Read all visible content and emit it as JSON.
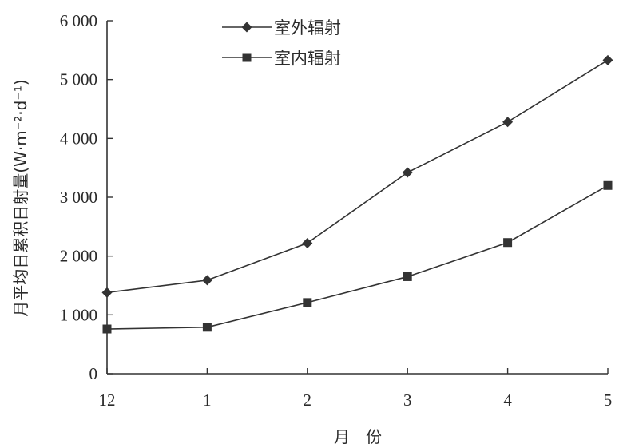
{
  "chart_data": {
    "type": "line",
    "categories": [
      "12",
      "1",
      "2",
      "3",
      "4",
      "5"
    ],
    "series": [
      {
        "name": "室外辐射",
        "marker": "diamond",
        "values": [
          1380,
          1590,
          2220,
          3420,
          4280,
          5330
        ]
      },
      {
        "name": "室内辐射",
        "marker": "square",
        "values": [
          760,
          790,
          1210,
          1650,
          2230,
          3200
        ]
      }
    ],
    "xlabel": "月　份",
    "ylabel": "月平均日累积日射量(W·m⁻²·d⁻¹)",
    "ylim": [
      0,
      6000
    ],
    "yticks": [
      0,
      1000,
      2000,
      3000,
      4000,
      5000,
      6000
    ],
    "ytick_labels": [
      "0",
      "1 000",
      "2 000",
      "3 000",
      "4 000",
      "5 000",
      "6 000"
    ],
    "legend_position": "top-center",
    "grid": false,
    "colors": {
      "line": "#333333",
      "axis": "#333333"
    }
  }
}
